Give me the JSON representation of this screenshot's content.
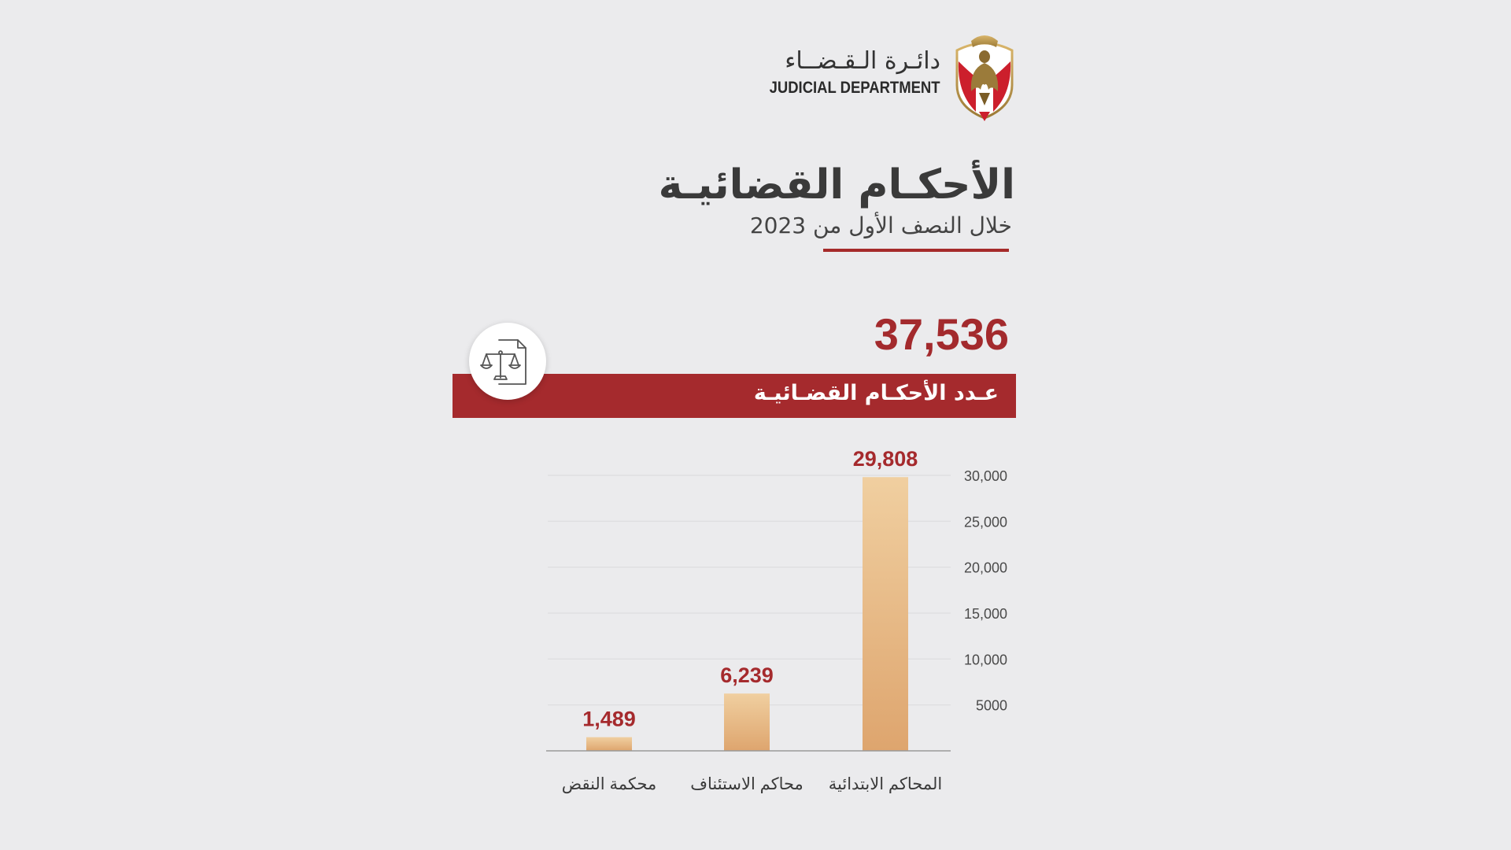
{
  "header": {
    "logo_ar": "دائـرة الـقـضــاء",
    "logo_en": "JUDICIAL DEPARTMENT",
    "title": "الأحكـام القضائيـة",
    "subtitle": "خلال النصف الأول من 2023"
  },
  "summary": {
    "total_value": "37,536",
    "total_label": "عـدد الأحكـام القضـائيـة",
    "icon": "scales-document-icon"
  },
  "colors": {
    "accent": "#a52a2d",
    "background": "#ebebed",
    "bar_top": "#f0cfa0",
    "bar_bottom": "#dea56e"
  },
  "chart_data": {
    "type": "bar",
    "categories": [
      "المحاكم الابتدائية",
      "محاكم الاستئناف",
      "محكمة النقض"
    ],
    "values": [
      29808,
      6239,
      1489
    ],
    "value_labels": [
      "29,808",
      "6,239",
      "1,489"
    ],
    "yticks": [
      5000,
      10000,
      15000,
      20000,
      25000,
      30000
    ],
    "ytick_labels": [
      "5000",
      "10,000",
      "15,000",
      "20,000",
      "25,000",
      "30,000"
    ],
    "ylim": [
      0,
      30000
    ],
    "grid": true,
    "y_axis_side": "right"
  }
}
